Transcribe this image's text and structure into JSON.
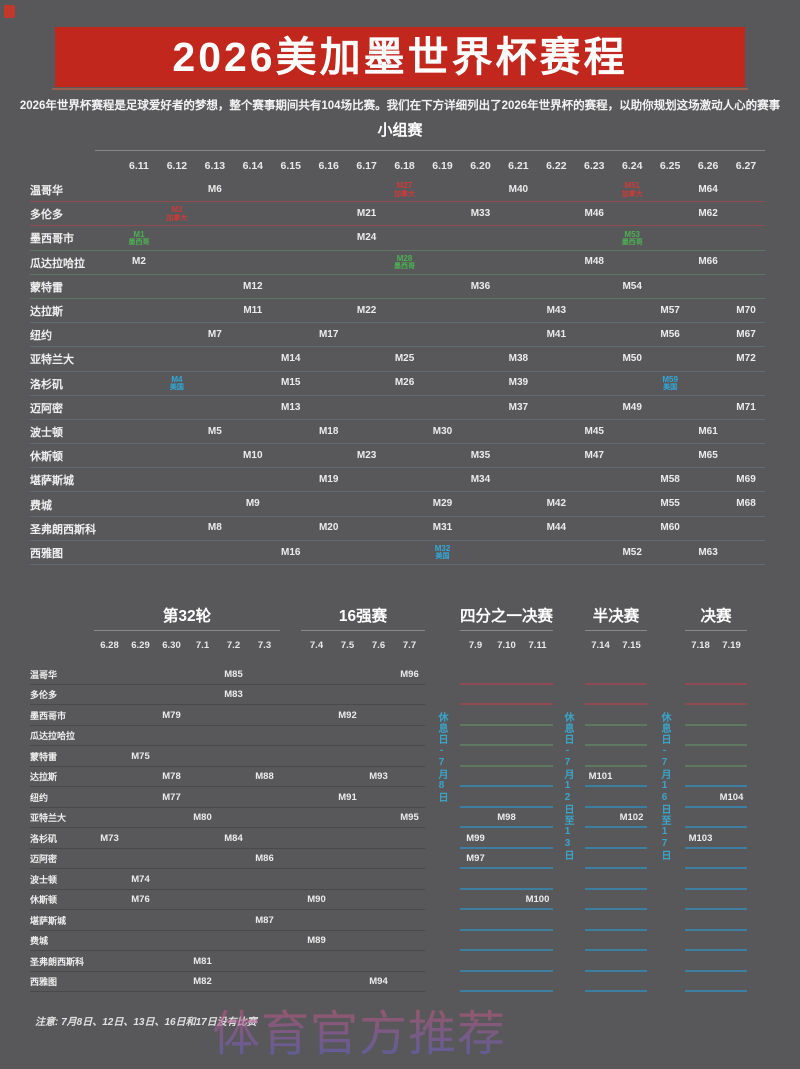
{
  "header": {
    "title": "2026美加墨世界杯赛程",
    "subtitle": "2026年世界杯赛程是足球爱好者的梦想，整个赛事期间共有104场比赛。我们在下方详细列出了2026年世界杯的赛程，以助你规划这场激动人心的赛事"
  },
  "group_stage": {
    "section_title": "小组赛",
    "dates": [
      "6.11",
      "6.12",
      "6.13",
      "6.14",
      "6.15",
      "6.16",
      "6.17",
      "6.18",
      "6.19",
      "6.20",
      "6.21",
      "6.22",
      "6.23",
      "6.24",
      "6.25",
      "6.26",
      "6.27"
    ],
    "rows": [
      {
        "city": "温哥华",
        "country": "CA",
        "matches": [
          {
            "col": 2,
            "label": "M6"
          },
          {
            "col": 7,
            "label": "M27",
            "sub": "加拿大",
            "tag": "CA"
          },
          {
            "col": 10,
            "label": "M40"
          },
          {
            "col": 13,
            "label": "M51",
            "sub": "加拿大",
            "tag": "CA"
          },
          {
            "col": 15,
            "label": "M64"
          }
        ]
      },
      {
        "city": "多伦多",
        "country": "CA",
        "matches": [
          {
            "col": 1,
            "label": "M3",
            "sub": "加拿大",
            "tag": "CA"
          },
          {
            "col": 6,
            "label": "M21"
          },
          {
            "col": 9,
            "label": "M33"
          },
          {
            "col": 12,
            "label": "M46"
          },
          {
            "col": 15,
            "label": "M62"
          }
        ]
      },
      {
        "city": "墨西哥市",
        "country": "MX",
        "matches": [
          {
            "col": 0,
            "label": "M1",
            "sub": "墨西哥",
            "tag": "MX"
          },
          {
            "col": 6,
            "label": "M24"
          },
          {
            "col": 13,
            "label": "M53",
            "sub": "墨西哥",
            "tag": "MX"
          }
        ]
      },
      {
        "city": "瓜达拉哈拉",
        "country": "MX",
        "matches": [
          {
            "col": 0,
            "label": "M2"
          },
          {
            "col": 7,
            "label": "M28",
            "sub": "墨西哥",
            "tag": "MX"
          },
          {
            "col": 12,
            "label": "M48"
          },
          {
            "col": 15,
            "label": "M66"
          }
        ]
      },
      {
        "city": "蒙特雷",
        "country": "MX",
        "matches": [
          {
            "col": 3,
            "label": "M12"
          },
          {
            "col": 9,
            "label": "M36"
          },
          {
            "col": 13,
            "label": "M54"
          }
        ]
      },
      {
        "city": "达拉斯",
        "country": "US",
        "matches": [
          {
            "col": 3,
            "label": "M11"
          },
          {
            "col": 6,
            "label": "M22"
          },
          {
            "col": 11,
            "label": "M43"
          },
          {
            "col": 14,
            "label": "M57"
          },
          {
            "col": 16,
            "label": "M70"
          }
        ]
      },
      {
        "city": "纽约",
        "country": "US",
        "matches": [
          {
            "col": 2,
            "label": "M7"
          },
          {
            "col": 5,
            "label": "M17"
          },
          {
            "col": 11,
            "label": "M41"
          },
          {
            "col": 14,
            "label": "M56"
          },
          {
            "col": 16,
            "label": "M67"
          }
        ]
      },
      {
        "city": "亚特兰大",
        "country": "US",
        "matches": [
          {
            "col": 4,
            "label": "M14"
          },
          {
            "col": 7,
            "label": "M25"
          },
          {
            "col": 10,
            "label": "M38"
          },
          {
            "col": 13,
            "label": "M50"
          },
          {
            "col": 16,
            "label": "M72"
          }
        ]
      },
      {
        "city": "洛杉矶",
        "country": "US",
        "matches": [
          {
            "col": 1,
            "label": "M4",
            "sub": "美国",
            "tag": "US"
          },
          {
            "col": 4,
            "label": "M15"
          },
          {
            "col": 7,
            "label": "M26"
          },
          {
            "col": 10,
            "label": "M39"
          },
          {
            "col": 14,
            "label": "M59",
            "sub": "美国",
            "tag": "US"
          }
        ]
      },
      {
        "city": "迈阿密",
        "country": "US",
        "matches": [
          {
            "col": 4,
            "label": "M13"
          },
          {
            "col": 10,
            "label": "M37"
          },
          {
            "col": 13,
            "label": "M49"
          },
          {
            "col": 16,
            "label": "M71"
          }
        ]
      },
      {
        "city": "波士顿",
        "country": "US",
        "matches": [
          {
            "col": 2,
            "label": "M5"
          },
          {
            "col": 5,
            "label": "M18"
          },
          {
            "col": 8,
            "label": "M30"
          },
          {
            "col": 12,
            "label": "M45"
          },
          {
            "col": 15,
            "label": "M61"
          }
        ]
      },
      {
        "city": "休斯顿",
        "country": "US",
        "matches": [
          {
            "col": 3,
            "label": "M10"
          },
          {
            "col": 6,
            "label": "M23"
          },
          {
            "col": 9,
            "label": "M35"
          },
          {
            "col": 12,
            "label": "M47"
          },
          {
            "col": 15,
            "label": "M65"
          }
        ]
      },
      {
        "city": "堪萨斯城",
        "country": "US",
        "matches": [
          {
            "col": 5,
            "label": "M19"
          },
          {
            "col": 9,
            "label": "M34"
          },
          {
            "col": 14,
            "label": "M58"
          },
          {
            "col": 16,
            "label": "M69"
          }
        ]
      },
      {
        "city": "费城",
        "country": "US",
        "matches": [
          {
            "col": 3,
            "label": "M9"
          },
          {
            "col": 8,
            "label": "M29"
          },
          {
            "col": 11,
            "label": "M42"
          },
          {
            "col": 14,
            "label": "M55"
          },
          {
            "col": 16,
            "label": "M68"
          }
        ]
      },
      {
        "city": "圣弗朗西斯科",
        "country": "US",
        "matches": [
          {
            "col": 2,
            "label": "M8"
          },
          {
            "col": 5,
            "label": "M20"
          },
          {
            "col": 8,
            "label": "M31"
          },
          {
            "col": 11,
            "label": "M44"
          },
          {
            "col": 14,
            "label": "M60"
          }
        ]
      },
      {
        "city": "西雅图",
        "country": "US",
        "matches": [
          {
            "col": 4,
            "label": "M16"
          },
          {
            "col": 8,
            "label": "M32",
            "sub": "美国",
            "tag": "US"
          },
          {
            "col": 13,
            "label": "M52"
          },
          {
            "col": 15,
            "label": "M63"
          }
        ]
      }
    ]
  },
  "knockout": {
    "sections": [
      {
        "title": "第32轮",
        "dates": [
          "6.28",
          "6.29",
          "6.30",
          "7.1",
          "7.2",
          "7.3"
        ]
      },
      {
        "title": "16强赛",
        "dates": [
          "7.4",
          "7.5",
          "7.6",
          "7.7"
        ]
      },
      {
        "title": "四分之一决赛",
        "dates": [
          "7.9",
          "7.10",
          "7.11"
        ]
      },
      {
        "title": "半决赛",
        "dates": [
          "7.14",
          "7.15"
        ]
      },
      {
        "title": "决赛",
        "dates": [
          "7.18",
          "7.19"
        ]
      }
    ],
    "rows": [
      {
        "city": "温哥华",
        "country": "CA",
        "matches": [
          {
            "col": 4,
            "label": "M85"
          },
          {
            "col": 9,
            "label": "M96"
          }
        ]
      },
      {
        "city": "多伦多",
        "country": "CA",
        "matches": [
          {
            "col": 4,
            "label": "M83"
          }
        ]
      },
      {
        "city": "墨西哥市",
        "country": "MX",
        "matches": [
          {
            "col": 2,
            "label": "M79"
          },
          {
            "col": 7,
            "label": "M92"
          }
        ]
      },
      {
        "city": "瓜达拉哈拉",
        "country": "MX",
        "matches": []
      },
      {
        "city": "蒙特雷",
        "country": "MX",
        "matches": [
          {
            "col": 1,
            "label": "M75"
          }
        ]
      },
      {
        "city": "达拉斯",
        "country": "US",
        "matches": [
          {
            "col": 2,
            "label": "M78"
          },
          {
            "col": 5,
            "label": "M88"
          },
          {
            "col": 8,
            "label": "M93"
          },
          {
            "col": 13,
            "label": "M101"
          }
        ]
      },
      {
        "city": "纽约",
        "country": "US",
        "matches": [
          {
            "col": 2,
            "label": "M77"
          },
          {
            "col": 7,
            "label": "M91"
          },
          {
            "col": 16,
            "label": "M104"
          }
        ]
      },
      {
        "city": "亚特兰大",
        "country": "US",
        "matches": [
          {
            "col": 3,
            "label": "M80"
          },
          {
            "col": 9,
            "label": "M95"
          },
          {
            "col": 11,
            "label": "M98"
          },
          {
            "col": 14,
            "label": "M102"
          }
        ]
      },
      {
        "city": "洛杉矶",
        "country": "US",
        "matches": [
          {
            "col": 0,
            "label": "M73"
          },
          {
            "col": 4,
            "label": "M84"
          },
          {
            "col": 10,
            "label": "M99"
          },
          {
            "col": 15,
            "label": "M103"
          }
        ]
      },
      {
        "city": "迈阿密",
        "country": "US",
        "matches": [
          {
            "col": 5,
            "label": "M86"
          },
          {
            "col": 10,
            "label": "M97"
          }
        ]
      },
      {
        "city": "波士顿",
        "country": "US",
        "matches": [
          {
            "col": 1,
            "label": "M74"
          }
        ]
      },
      {
        "city": "休斯顿",
        "country": "US",
        "matches": [
          {
            "col": 1,
            "label": "M76"
          },
          {
            "col": 6,
            "label": "M90"
          },
          {
            "col": 12,
            "label": "M100"
          }
        ]
      },
      {
        "city": "堪萨斯城",
        "country": "US",
        "matches": [
          {
            "col": 5,
            "label": "M87"
          }
        ]
      },
      {
        "city": "费城",
        "country": "US",
        "matches": [
          {
            "col": 6,
            "label": "M89"
          }
        ]
      },
      {
        "city": "圣弗朗西斯科",
        "country": "US",
        "matches": [
          {
            "col": 3,
            "label": "M81"
          }
        ]
      },
      {
        "city": "西雅图",
        "country": "US",
        "matches": [
          {
            "col": 3,
            "label": "M82"
          },
          {
            "col": 8,
            "label": "M94"
          }
        ]
      }
    ],
    "rest_days": [
      "休息日-7月8日",
      "休息日-7月12日至13日",
      "休息日-7月16日至17日"
    ]
  },
  "footer": {
    "note": "注意: 7月8日、12日、13日、16日和17日没有比赛",
    "watermark": "体育官方推荐"
  },
  "colors": {
    "banner_red": "#c1271d",
    "banner_underline": "#96604f",
    "corner_mark_red": "#c0392b",
    "canada_red": "#cc3b38",
    "mexico_green": "#4cb052",
    "usa_cyan": "#30a9d9",
    "rest_day_cyan": "#3ba4c9",
    "watermark_top": "#d95570",
    "watermark_bottom": "#5f63d6"
  }
}
